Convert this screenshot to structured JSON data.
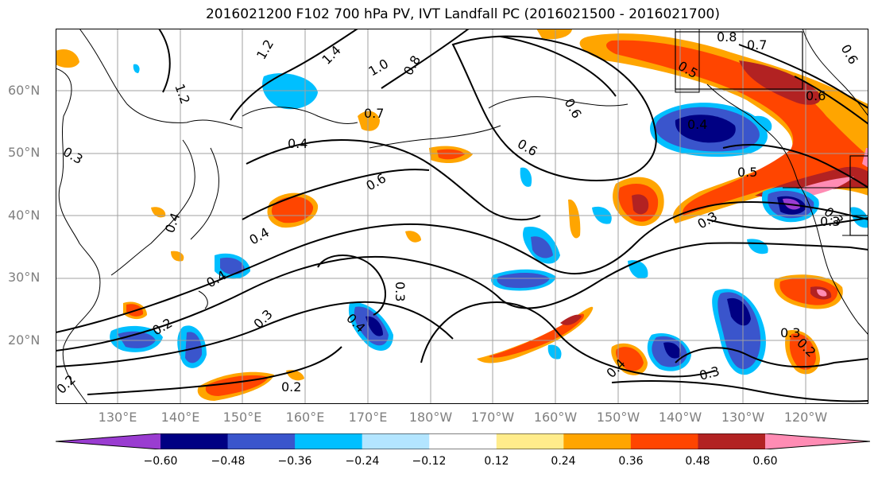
{
  "title": "2016021200 F102 700 hPa PV, IVT Landfall PC (2016021500 - 2016021700)",
  "lon_labels": [
    "130°E",
    "140°E",
    "150°E",
    "160°E",
    "170°E",
    "180°W",
    "170°W",
    "160°W",
    "150°W",
    "140°W",
    "130°W",
    "120°W"
  ],
  "lat_labels": [
    "60°N",
    "50°N",
    "40°N",
    "30°N",
    "20°N"
  ],
  "colorbar": {
    "ticks": [
      "−0.60",
      "−0.48",
      "−0.36",
      "−0.24",
      "−0.12",
      "0.12",
      "0.24",
      "0.36",
      "0.48",
      "0.60"
    ],
    "colors": [
      "#9a3cd1",
      "#000083",
      "#3a55cc",
      "#00bfff",
      "#b3e5ff",
      "#ffffff",
      "#ffec8b",
      "#ffa500",
      "#ff4500",
      "#b22222",
      "#ff8cb4"
    ]
  },
  "contour_labels": [
    "1.2",
    "1.2",
    "1.4",
    "1.0",
    "0.8",
    "0.8",
    "0.7",
    "0.6",
    "0.5",
    "0.7",
    "0.6",
    "0.6",
    "0.6",
    "0.4",
    "0.5",
    "0.4",
    "0.6",
    "0.3",
    "0.3",
    "0.4",
    "0.4",
    "0.3",
    "0.4",
    "0.3",
    "0.2",
    "0.4",
    "0.3",
    "0.3",
    "0.2",
    "0.2",
    "0.3",
    "0.4",
    "0.3",
    "0.2"
  ]
}
